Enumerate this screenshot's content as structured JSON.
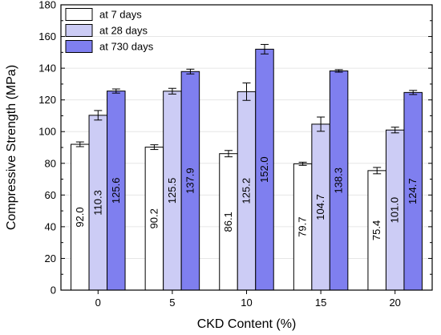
{
  "chart_data": {
    "type": "bar",
    "xlabel": "CKD Content (%)",
    "ylabel": "Compressive Strength (MPa)",
    "categories": [
      "0",
      "5",
      "10",
      "15",
      "20"
    ],
    "ylim": [
      0,
      180
    ],
    "yticks": [
      0,
      20,
      40,
      60,
      80,
      100,
      120,
      140,
      160,
      180
    ],
    "legend_position": "top-left",
    "series": [
      {
        "name": "at 7 days",
        "color": "#ffffff",
        "values": [
          92.0,
          90.2,
          86.1,
          79.7,
          75.4
        ],
        "errors": [
          1.5,
          1.5,
          2.0,
          1.0,
          2.0
        ],
        "labels": [
          "92.0",
          "90.2",
          "86.1",
          "79.7",
          "75.4"
        ]
      },
      {
        "name": "at 28 days",
        "color": "#ccccf5",
        "values": [
          110.3,
          125.5,
          125.2,
          104.7,
          101.0
        ],
        "errors": [
          3.0,
          1.8,
          5.5,
          4.5,
          1.8
        ],
        "labels": [
          "110.3",
          "125.5",
          "125.2",
          "104.7",
          "101.0"
        ]
      },
      {
        "name": "at 730 days",
        "color": "#7f7fef",
        "values": [
          125.6,
          137.9,
          152.0,
          138.3,
          124.7
        ],
        "errors": [
          1.3,
          1.5,
          3.0,
          0.8,
          1.3
        ],
        "labels": [
          "125.6",
          "137.9",
          "152.0",
          "138.3",
          "124.7"
        ]
      }
    ]
  }
}
